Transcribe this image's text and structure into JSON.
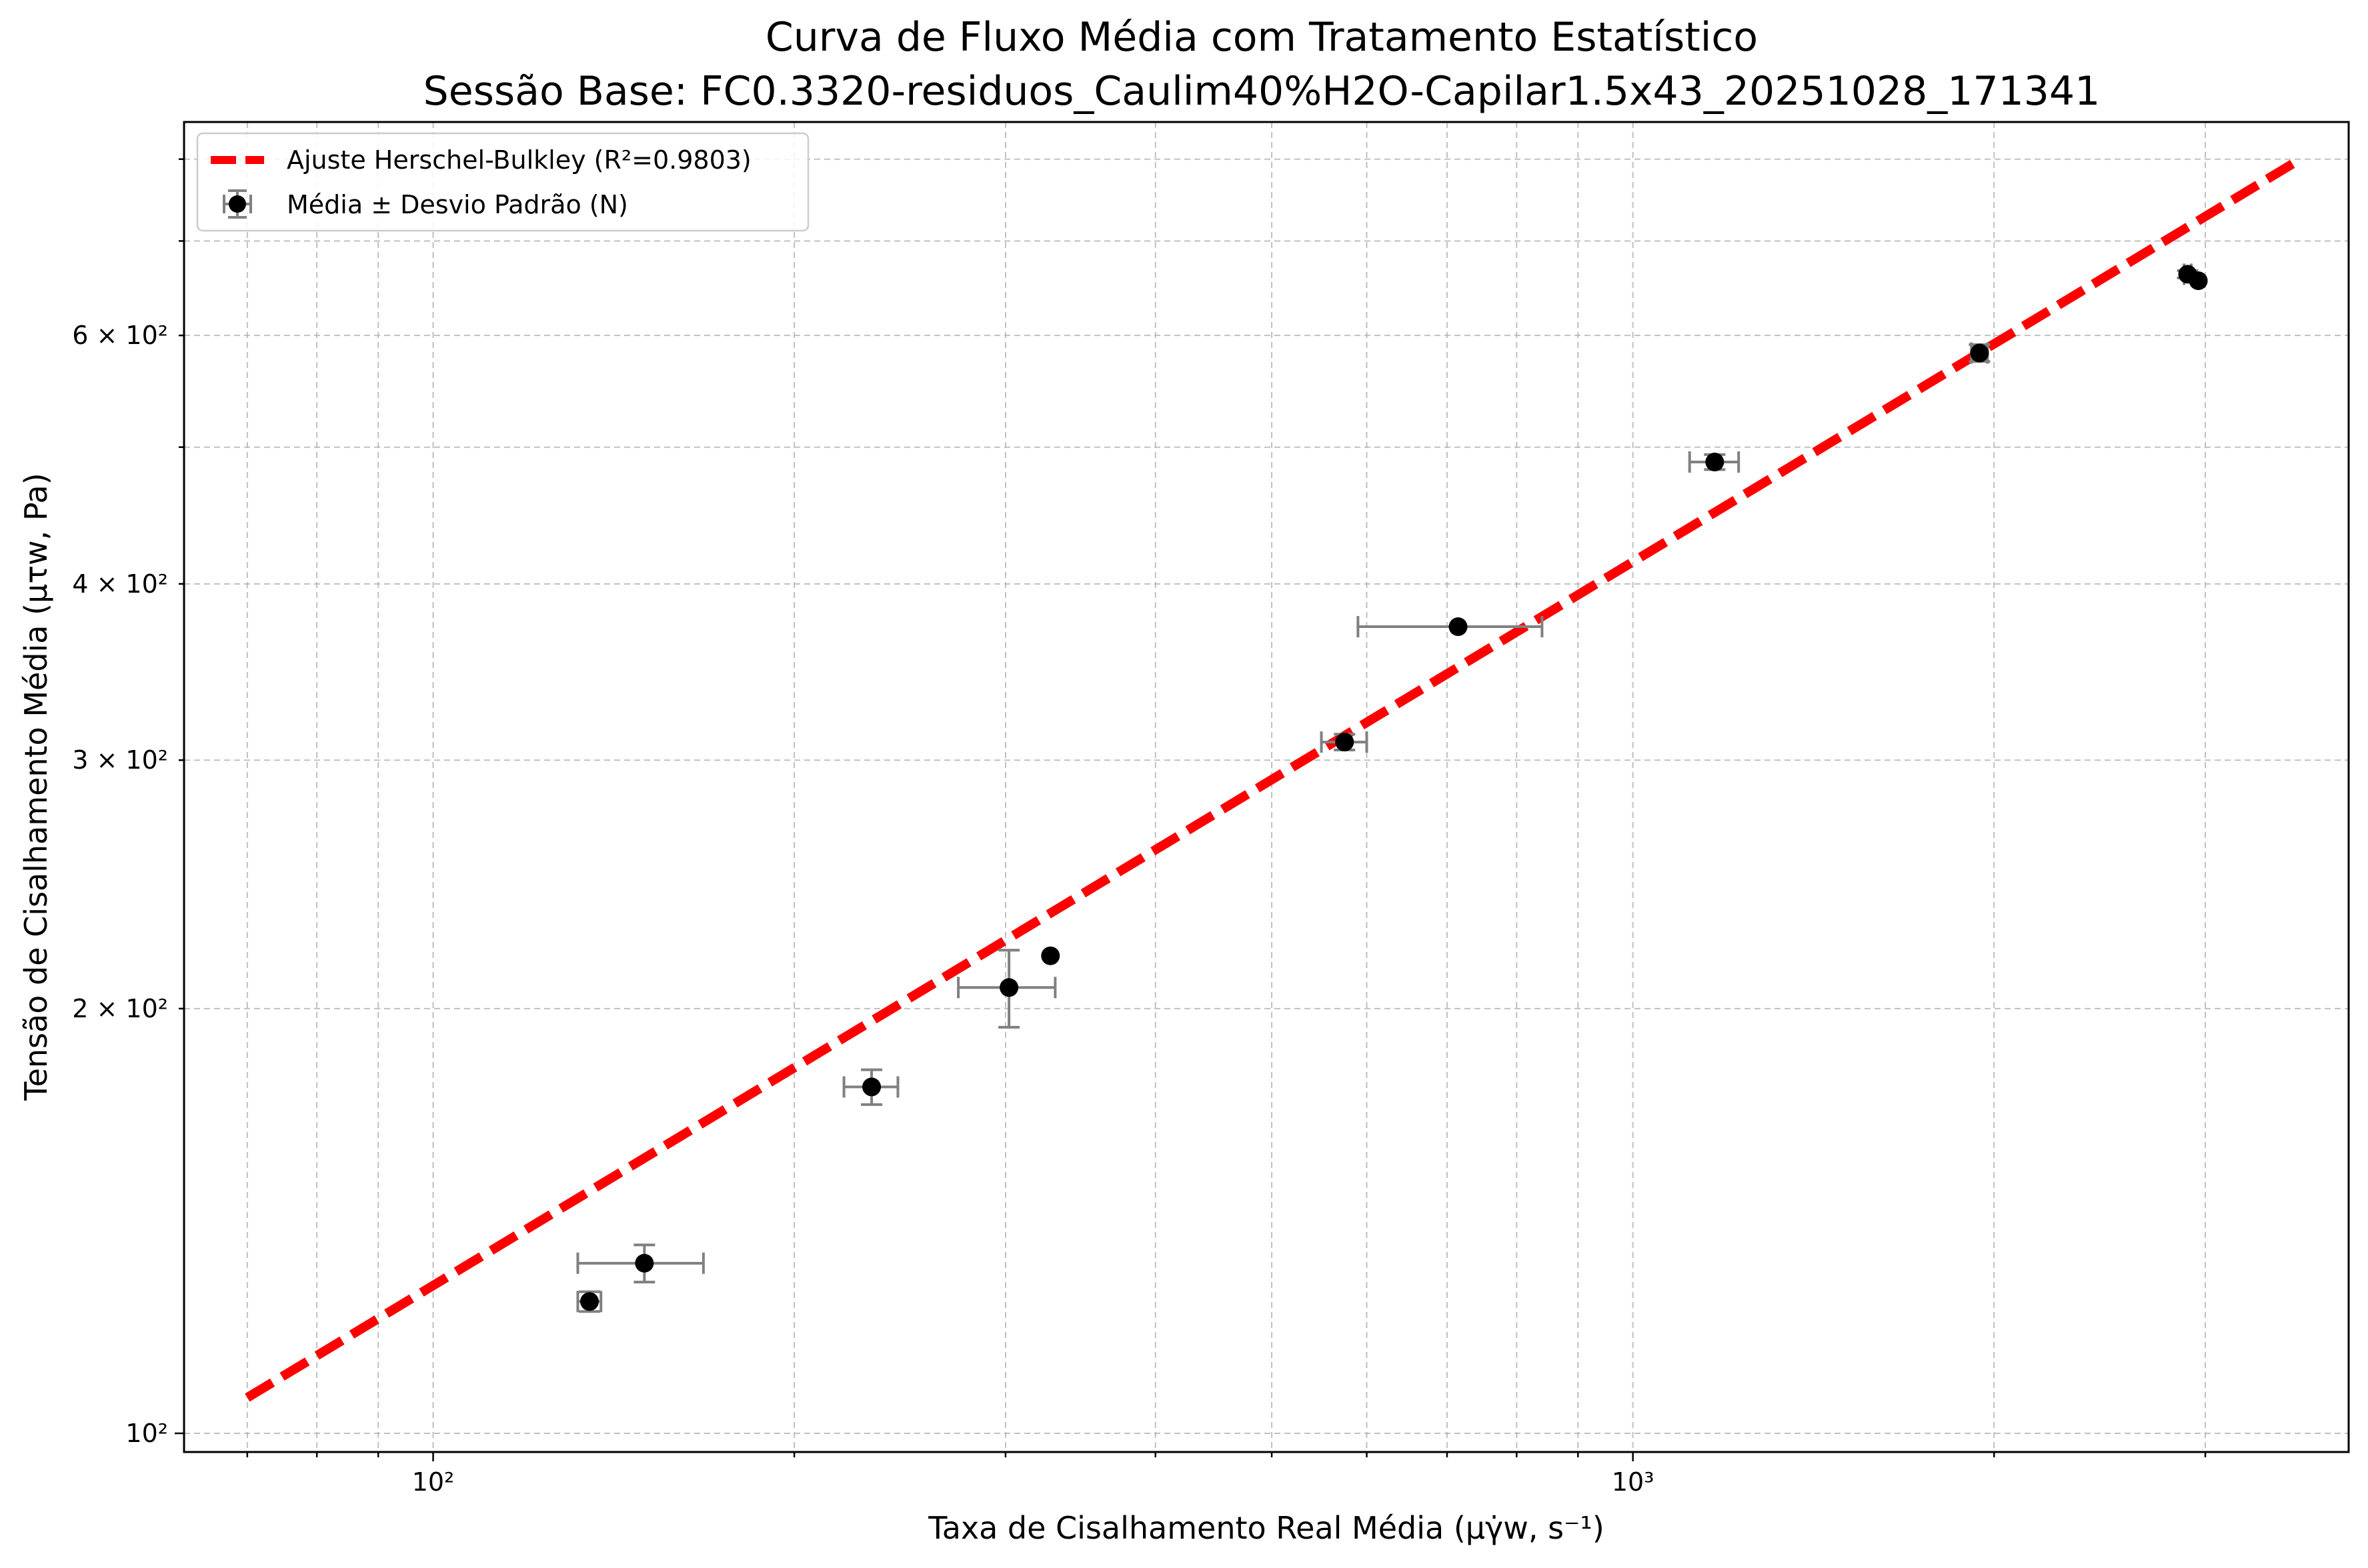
{
  "chart_data": {
    "type": "scatter",
    "title": "Curva de Fluxo Média com Tratamento Estatístico",
    "subtitle": "Sessão Base: FC0.3320-residuos_Caulim40%H2O-Capilar1.5x43_20251028_171341",
    "xlabel": "Taxa de Cisalhamento Real Média (μγ̇w, s⁻¹)",
    "ylabel": "Tensão de Cisalhamento Média (μτw, Pa)",
    "x_scale": "log",
    "y_scale": "log",
    "xlim": [
      62,
      3950
    ],
    "ylim": [
      97,
      850
    ],
    "grid": true,
    "legend_position": "top-left",
    "x_ticks": [
      {
        "value": 100,
        "label": "10²"
      },
      {
        "value": 1000,
        "label": "10³"
      }
    ],
    "y_ticks": [
      {
        "value": 100,
        "label": "10²"
      },
      {
        "value": 200,
        "label": "2 × 10²"
      },
      {
        "value": 300,
        "label": "3 × 10²"
      },
      {
        "value": 400,
        "label": "4 × 10²"
      },
      {
        "value": 600,
        "label": "6 × 10²"
      }
    ],
    "series": [
      {
        "name": "Ajuste Herschel-Bulkley (R²=0.9803)",
        "kind": "fit-line",
        "color": "#ff0000",
        "x": [
          70,
          3600
        ],
        "y": [
          106,
          800
        ]
      },
      {
        "name": "Média ± Desvio Padrão (N)",
        "kind": "errorbar",
        "color": "#000000",
        "error_color": "#808080",
        "points": [
          {
            "x": 135,
            "y": 124,
            "xerr": 3,
            "yerr": 2
          },
          {
            "x": 150,
            "y": 132,
            "xerr": 18,
            "yerr": 4
          },
          {
            "x": 232,
            "y": 176,
            "xerr": 12,
            "yerr": 5
          },
          {
            "x": 302,
            "y": 207,
            "xerr": 28,
            "yerr": 13
          },
          {
            "x": 327,
            "y": 218,
            "xerr": 0,
            "yerr": 0
          },
          {
            "x": 575,
            "y": 309,
            "xerr": 25,
            "yerr": 4
          },
          {
            "x": 715,
            "y": 373,
            "xerr": 125,
            "yerr": 0
          },
          {
            "x": 1170,
            "y": 488,
            "xerr": 55,
            "yerr": 6
          },
          {
            "x": 1945,
            "y": 583,
            "xerr": 30,
            "yerr": 8
          },
          {
            "x": 2900,
            "y": 663,
            "xerr": 20,
            "yerr": 4
          },
          {
            "x": 2960,
            "y": 656,
            "xerr": 0,
            "yerr": 0
          }
        ]
      }
    ]
  }
}
